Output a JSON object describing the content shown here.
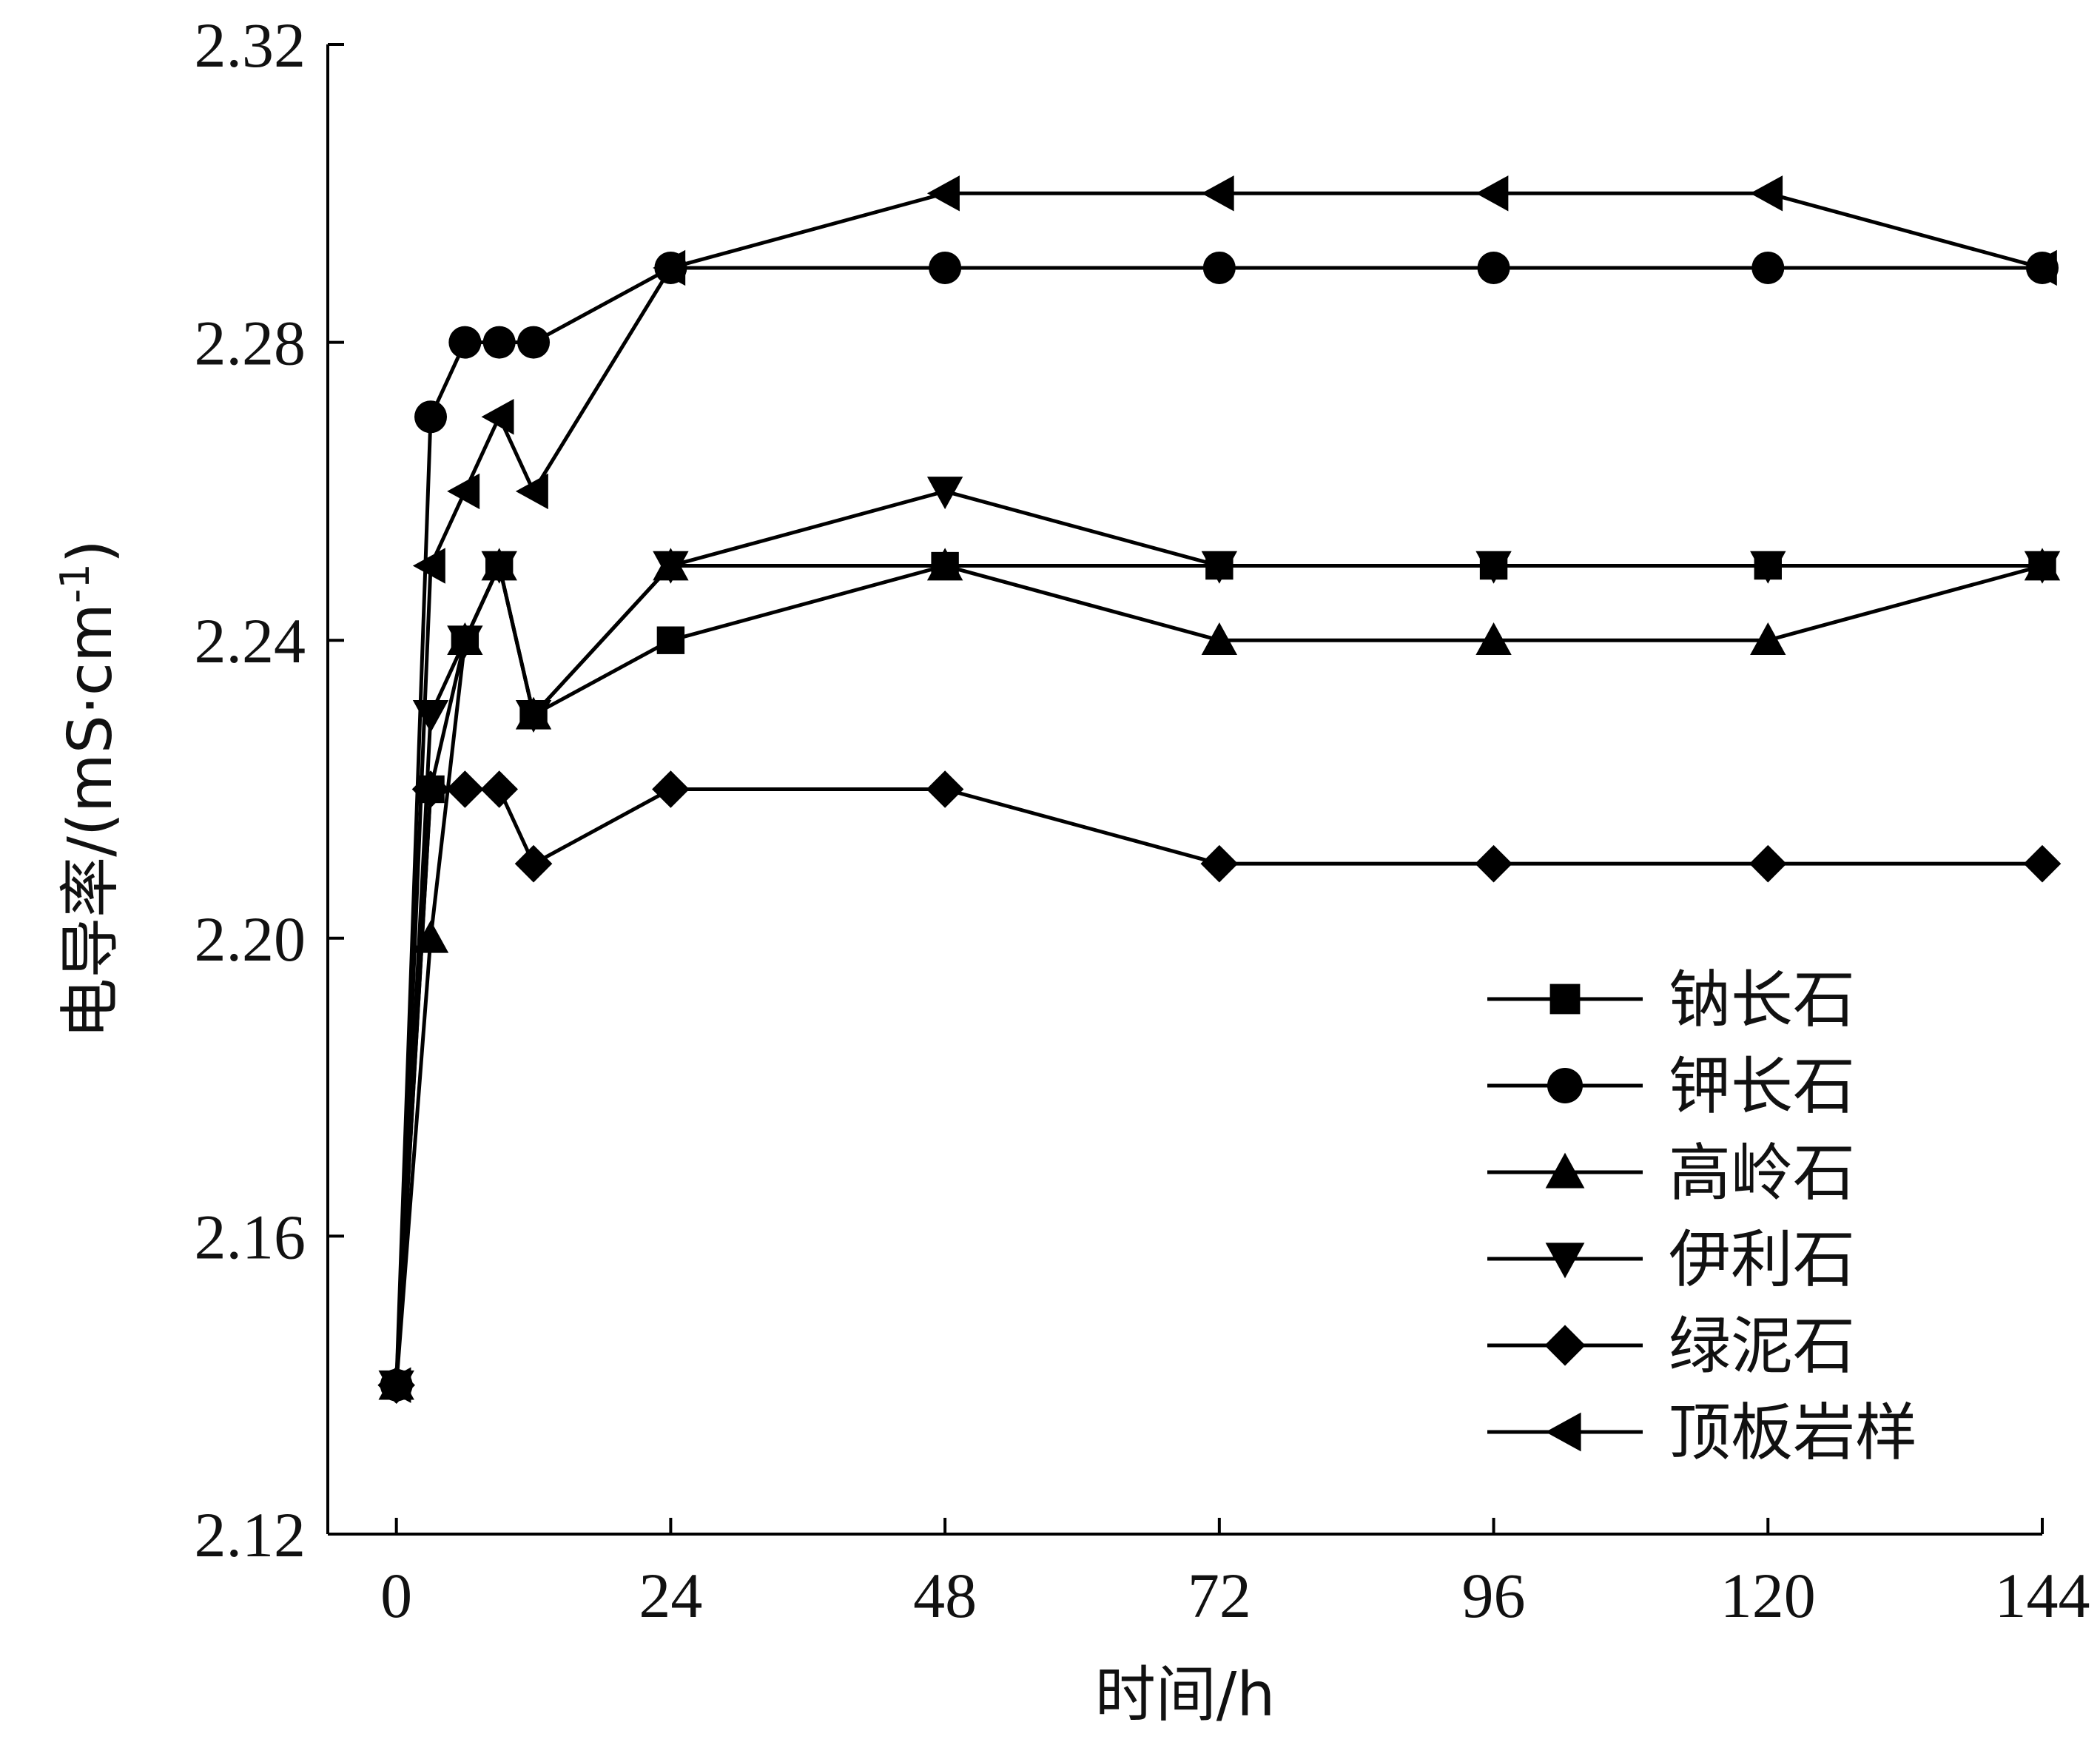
{
  "chart_data": {
    "type": "line",
    "title": "",
    "xlabel": "时间/h",
    "ylabel": "电导率/(mS·cm",
    "ylabel_sup": "-1",
    "ylabel_close": ")",
    "xlim": [
      -6,
      144
    ],
    "ylim": [
      2.12,
      2.32
    ],
    "x_ticks": [
      0,
      24,
      48,
      72,
      96,
      120,
      144
    ],
    "x_tick_labels": [
      "0",
      "24",
      "48",
      "72",
      "96",
      "120",
      "144"
    ],
    "y_ticks": [
      2.12,
      2.16,
      2.2,
      2.24,
      2.28,
      2.32
    ],
    "y_tick_labels": [
      "2.12",
      "2.16",
      "2.20",
      "2.24",
      "2.28",
      "2.32"
    ],
    "x": [
      0,
      3,
      6,
      9,
      12,
      24,
      48,
      72,
      96,
      120,
      144
    ],
    "legend_position": "bottom-right",
    "grid": false,
    "series": [
      {
        "name": "钠长石",
        "marker": "square",
        "values": [
          2.14,
          2.22,
          2.24,
          2.25,
          2.23,
          2.24,
          2.25,
          2.25,
          2.25,
          2.25,
          2.25
        ]
      },
      {
        "name": "钾长石",
        "marker": "circle",
        "values": [
          2.14,
          2.27,
          2.28,
          2.28,
          2.28,
          2.29,
          2.29,
          2.29,
          2.29,
          2.29,
          2.29
        ]
      },
      {
        "name": "高岭石",
        "marker": "triangle-up",
        "values": [
          2.14,
          2.2,
          2.24,
          2.25,
          2.23,
          2.25,
          2.25,
          2.24,
          2.24,
          2.24,
          2.25
        ]
      },
      {
        "name": "伊利石",
        "marker": "triangle-down",
        "values": [
          2.14,
          2.23,
          2.24,
          2.25,
          2.23,
          2.25,
          2.26,
          2.25,
          2.25,
          2.25,
          2.25
        ]
      },
      {
        "name": "绿泥石",
        "marker": "diamond",
        "values": [
          2.14,
          2.22,
          2.22,
          2.22,
          2.21,
          2.22,
          2.22,
          2.21,
          2.21,
          2.21,
          2.21
        ]
      },
      {
        "name": "顶板岩样",
        "marker": "triangle-left",
        "values": [
          2.14,
          2.25,
          2.26,
          2.27,
          2.26,
          2.29,
          2.3,
          2.3,
          2.3,
          2.3,
          2.29
        ]
      }
    ],
    "line_color": "#000000"
  }
}
